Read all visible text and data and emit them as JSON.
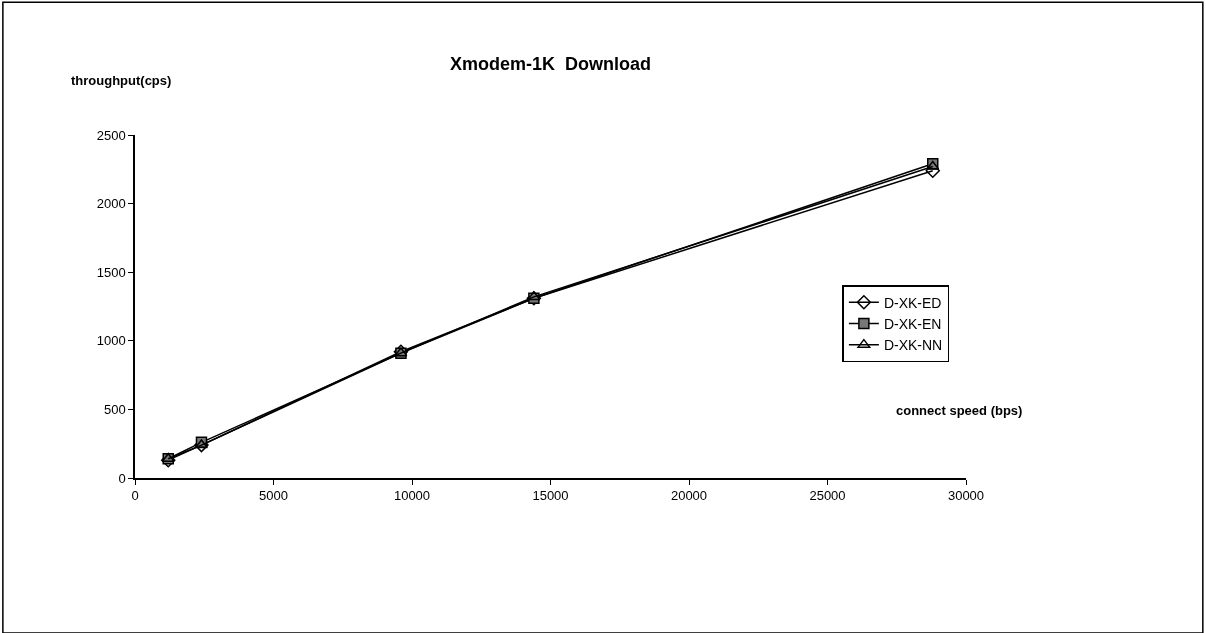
{
  "chart_data": {
    "type": "line",
    "title": "Xmodem-1K  Download",
    "xlabel": "connect speed (bps)",
    "ylabel": "throughput(cps)",
    "x": [
      1200,
      2400,
      9600,
      14400,
      28800
    ],
    "series": [
      {
        "name": "D-XK-ED",
        "color": "#000000",
        "marker": "diamond",
        "values": [
          130,
          240,
          920,
          1310,
          2240
        ]
      },
      {
        "name": "D-XK-EN",
        "color": "#000000",
        "marker": "square",
        "values": [
          140,
          260,
          910,
          1310,
          2290
        ]
      },
      {
        "name": "D-XK-NN",
        "color": "#000000",
        "marker": "triangle",
        "values": [
          140,
          240,
          910,
          1320,
          2270
        ]
      }
    ],
    "xlim": [
      0,
      30000
    ],
    "xticks": [
      0,
      5000,
      10000,
      15000,
      20000,
      25000,
      30000
    ],
    "ylim": [
      0,
      2500
    ],
    "yticks": [
      0,
      500,
      1000,
      1500,
      2000,
      2500
    ],
    "legend": "right",
    "line_style": "solid"
  }
}
